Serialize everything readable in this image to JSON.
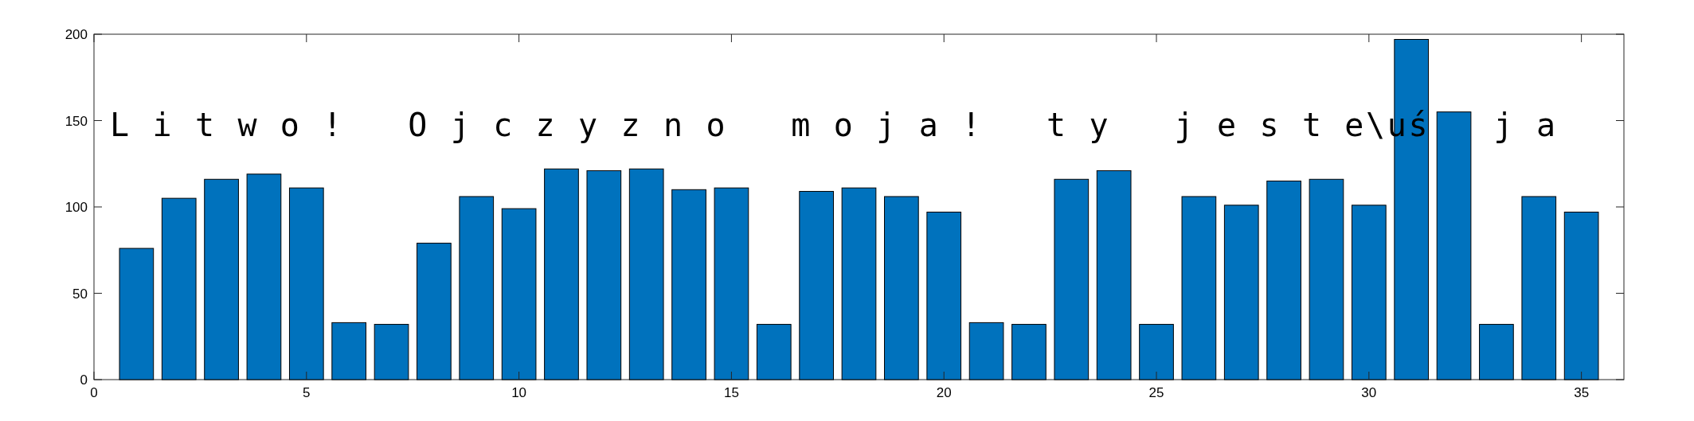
{
  "chart_data": {
    "type": "bar",
    "x": [
      1,
      2,
      3,
      4,
      5,
      6,
      7,
      8,
      9,
      10,
      11,
      12,
      13,
      14,
      15,
      16,
      17,
      18,
      19,
      20,
      21,
      22,
      23,
      24,
      25,
      26,
      27,
      28,
      29,
      30,
      31,
      32,
      33,
      34,
      35
    ],
    "values": [
      76,
      105,
      116,
      119,
      111,
      33,
      32,
      79,
      106,
      99,
      122,
      121,
      122,
      110,
      111,
      32,
      109,
      111,
      106,
      97,
      33,
      32,
      116,
      121,
      32,
      106,
      101,
      115,
      116,
      101,
      197,
      155,
      32,
      106,
      97
    ],
    "color": "#0072bd",
    "xlim": [
      0,
      36
    ],
    "xticks": [
      0,
      5,
      10,
      15,
      20,
      25,
      30,
      35
    ],
    "ylim": [
      0,
      200
    ],
    "yticks": [
      0,
      50,
      100,
      150,
      200
    ],
    "annotations": [
      "L i t w o !   O j c z y z n o   m o j a !   t y   j e s t e\\uś   j a"
    ]
  }
}
